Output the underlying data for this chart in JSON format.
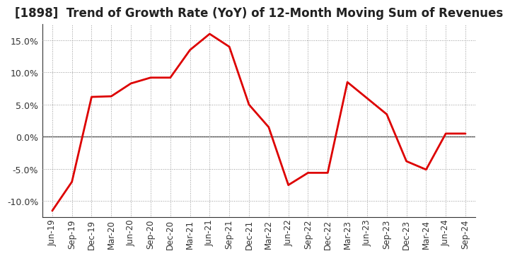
{
  "title": "[1898]  Trend of Growth Rate (YoY) of 12-Month Moving Sum of Revenues",
  "line_color": "#dd0000",
  "background_color": "#ffffff",
  "grid_color": "#999999",
  "ylim": [
    -0.125,
    0.175
  ],
  "yticks": [
    -0.1,
    -0.05,
    0.0,
    0.05,
    0.1,
    0.15
  ],
  "labels": [
    "Jun-19",
    "Sep-19",
    "Dec-19",
    "Mar-20",
    "Jun-20",
    "Sep-20",
    "Dec-20",
    "Mar-21",
    "Jun-21",
    "Sep-21",
    "Dec-21",
    "Mar-22",
    "Jun-22",
    "Sep-22",
    "Dec-22",
    "Mar-23",
    "Jun-23",
    "Sep-23",
    "Dec-23",
    "Mar-24",
    "Jun-24",
    "Sep-24"
  ],
  "values": [
    -0.115,
    -0.07,
    0.062,
    0.063,
    0.083,
    0.092,
    0.092,
    0.135,
    0.16,
    0.14,
    0.05,
    0.015,
    -0.075,
    -0.056,
    -0.056,
    0.085,
    0.06,
    0.035,
    -0.038,
    -0.051,
    0.005,
    0.005
  ],
  "title_fontsize": 12,
  "tick_fontsize": 9,
  "xtick_fontsize": 8.5
}
